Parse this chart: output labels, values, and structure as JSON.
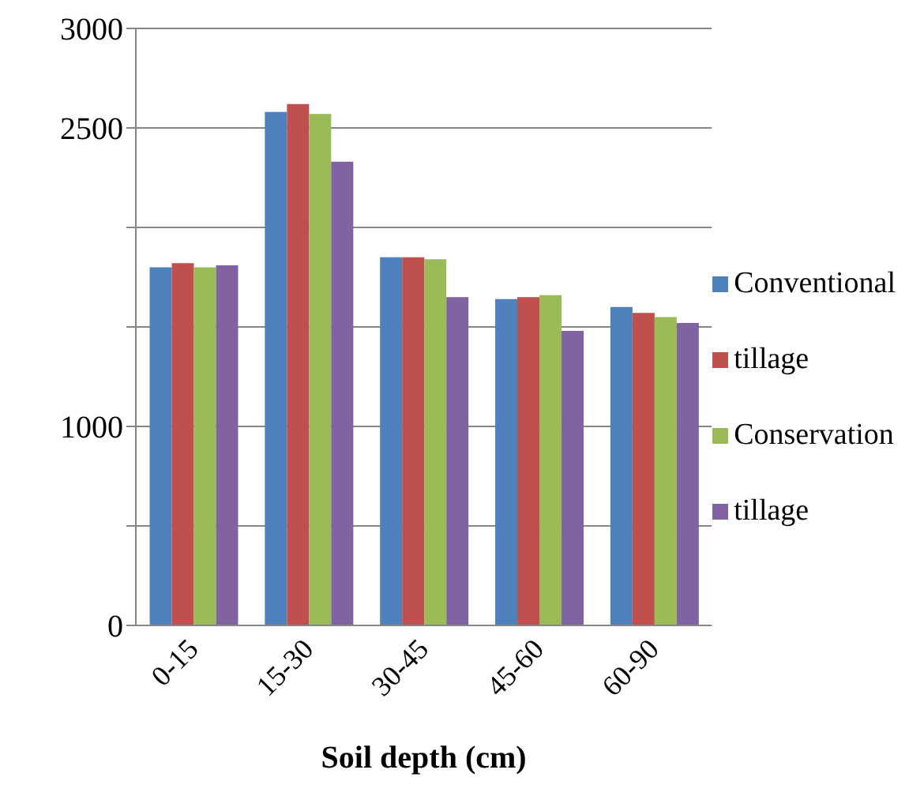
{
  "chart_data": {
    "type": "bar",
    "xlabel": "Soil depth (cm)",
    "categories": [
      "0-15",
      "15-30",
      "30-45",
      "45-60",
      "60-90"
    ],
    "series": [
      {
        "name": "Conventional",
        "color": "#4f81bd",
        "values": [
          1800,
          2580,
          1850,
          1640,
          1600
        ]
      },
      {
        "name": "tillage",
        "color": "#c0504d",
        "values": [
          1820,
          2620,
          1850,
          1650,
          1570
        ]
      },
      {
        "name": "Conservation",
        "color": "#9bbb59",
        "values": [
          1800,
          2570,
          1840,
          1660,
          1550
        ]
      },
      {
        "name": "tillage",
        "color": "#8064a2",
        "values": [
          1810,
          2330,
          1650,
          1480,
          1520
        ]
      }
    ],
    "ylim": [
      0,
      3000
    ],
    "yticks": [
      0,
      {
        "value": 500,
        "label": null
      },
      1000,
      {
        "value": 1500,
        "label": null
      },
      {
        "value": 2000,
        "label": null
      },
      2500,
      3000
    ],
    "grid": "y",
    "legend": "right"
  }
}
